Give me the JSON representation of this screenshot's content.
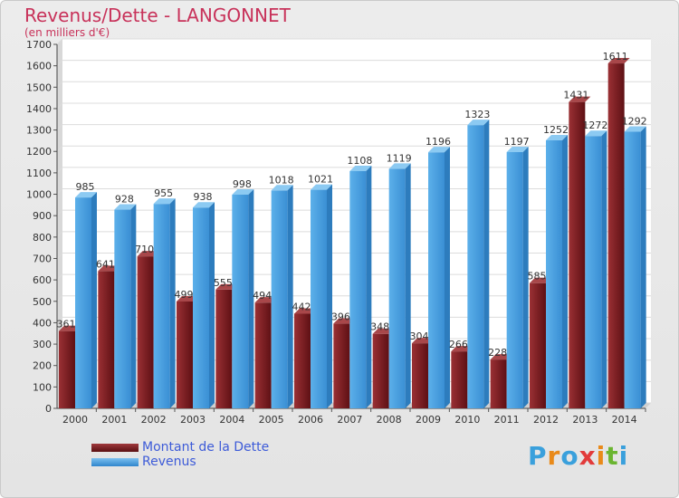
{
  "title": "Revenus/Dette - LANGONNET",
  "subtitle": "(en milliers d'€)",
  "colors": {
    "title": "#c8325a",
    "dette": "#7b1f22",
    "revenus": "#4fa3e0",
    "legend_text": "#3d5bd8"
  },
  "logo": {
    "text": "Proxiti",
    "letters": [
      "P",
      "r",
      "o",
      "x",
      "i",
      "t",
      "i"
    ]
  },
  "chart_data": {
    "type": "bar",
    "categories": [
      "2000",
      "2001",
      "2002",
      "2003",
      "2004",
      "2005",
      "2006",
      "2007",
      "2008",
      "2009",
      "2010",
      "2011",
      "2012",
      "2013",
      "2014"
    ],
    "series": [
      {
        "name": "Montant de la Dette",
        "values": [
          361,
          641,
          710,
          499,
          555,
          494,
          442,
          396,
          348,
          304,
          266,
          228,
          585,
          1431,
          1611
        ]
      },
      {
        "name": "Revenus",
        "values": [
          985,
          928,
          955,
          938,
          998,
          1018,
          1021,
          1108,
          1119,
          1196,
          1323,
          1197,
          1252,
          1272,
          1292
        ]
      }
    ],
    "ylim": [
      0,
      1700
    ],
    "yticks": [
      0,
      100,
      200,
      300,
      400,
      500,
      600,
      700,
      800,
      900,
      1000,
      1100,
      1200,
      1300,
      1400,
      1500,
      1600,
      1700
    ],
    "grid": true,
    "legend_position": "bottom-left"
  }
}
